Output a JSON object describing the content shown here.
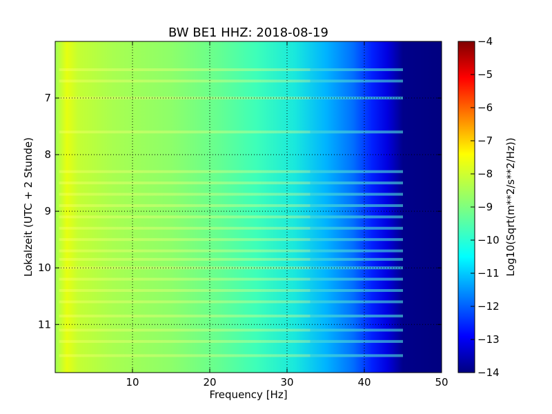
{
  "chart_data": {
    "type": "heatmap",
    "title": "BW BE1 HHZ: 2018-08-19",
    "xlabel": "Frequency [Hz]",
    "ylabel": "Lokalzeit (UTC + 2 Stunde)",
    "xlim": [
      0,
      50
    ],
    "ylim": [
      11.85,
      6.0
    ],
    "x_ticks": [
      10,
      20,
      30,
      40,
      50
    ],
    "y_ticks": [
      7,
      8,
      9,
      10,
      11
    ],
    "grid": true,
    "colormap": "jet",
    "colorbar": {
      "label": "Log10(Sqrt(m**2/s**2/Hz))",
      "range": [
        -14,
        -4
      ],
      "ticks": [
        -4,
        -5,
        -6,
        -7,
        -8,
        -9,
        -10,
        -11,
        -12,
        -13,
        -14
      ]
    },
    "spectral_profile": [
      {
        "frequency": 1,
        "value": -8.3
      },
      {
        "frequency": 3,
        "value": -8.0
      },
      {
        "frequency": 6,
        "value": -8.6
      },
      {
        "frequency": 10,
        "value": -8.9
      },
      {
        "frequency": 15,
        "value": -9.1
      },
      {
        "frequency": 20,
        "value": -9.4
      },
      {
        "frequency": 25,
        "value": -9.9
      },
      {
        "frequency": 30,
        "value": -10.4
      },
      {
        "frequency": 35,
        "value": -11.0
      },
      {
        "frequency": 38,
        "value": -11.6
      },
      {
        "frequency": 40,
        "value": -12.3
      },
      {
        "frequency": 42,
        "value": -13.0
      },
      {
        "frequency": 44,
        "value": -13.6
      },
      {
        "frequency": 46,
        "value": -14.0
      },
      {
        "frequency": 50,
        "value": -14.0
      }
    ],
    "high_noise_hours": [
      6.5,
      6.7,
      7.0,
      7.6,
      8.3,
      8.5,
      8.7,
      8.9,
      9.1,
      9.3,
      9.5,
      9.7,
      9.85,
      10.0,
      10.2,
      10.4,
      10.6,
      10.85,
      11.1,
      11.3,
      11.55
    ]
  }
}
